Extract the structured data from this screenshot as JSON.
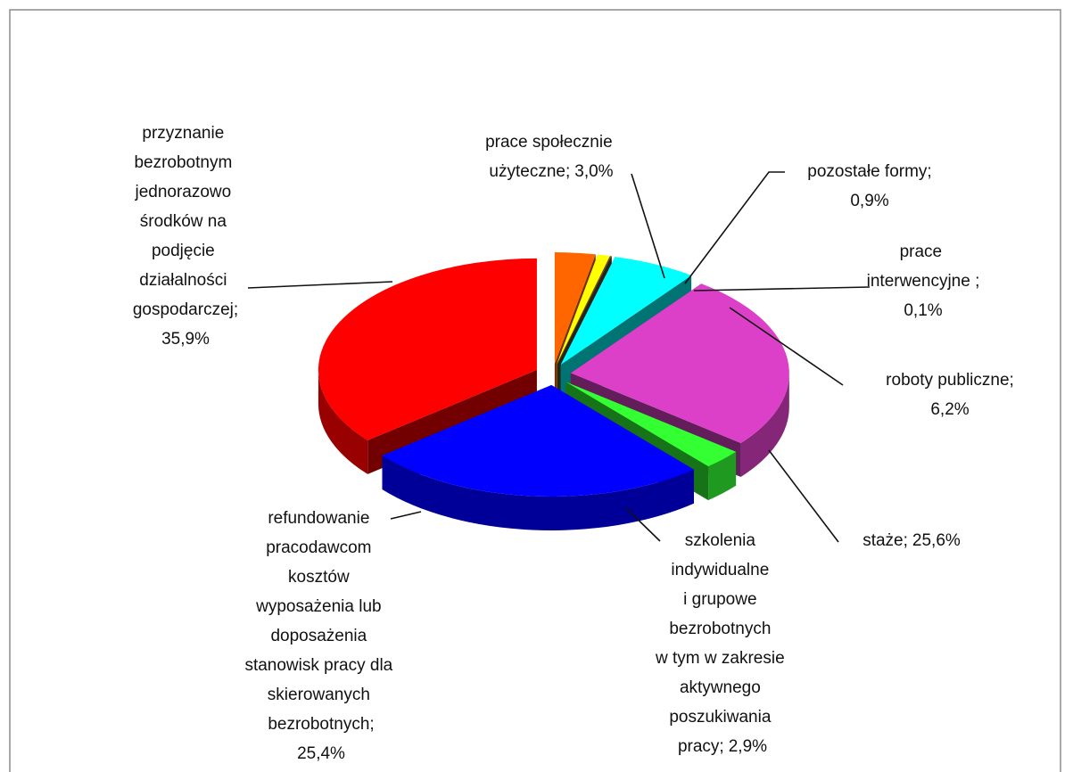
{
  "chart_data": {
    "type": "pie3d",
    "categories": [
      "prace społecznie użyteczne;",
      "pozostałe formy;",
      "prace interwencyjne ;",
      "roboty publiczne;",
      "staże;",
      "szkolenia indywidualne i grupowe bezrobotnych w tym w zakresie aktywnego poszukiwania pracy;",
      "refundowanie pracodawcom kosztów wyposażenia lub doposażenia stanowisk pracy dla skierowanych bezrobotnych;",
      "przyznanie bezrobotnym jednorazowo środków na podjęcie działalności gospodarczej;"
    ],
    "values": [
      3.0,
      0.9,
      0.1,
      6.2,
      25.6,
      2.9,
      25.4,
      35.9
    ],
    "value_labels": [
      "3,0%",
      "0,9%",
      "0,1%",
      "6,2%",
      "25,6%",
      "2,9%",
      "25,4%",
      "35,9%"
    ],
    "colors": [
      "#ff6600",
      "#ffff00",
      "#5a4a3a",
      "#00ffff",
      "#dd40c8",
      "#33ff33",
      "#0000ff",
      "#ff0000"
    ]
  }
}
